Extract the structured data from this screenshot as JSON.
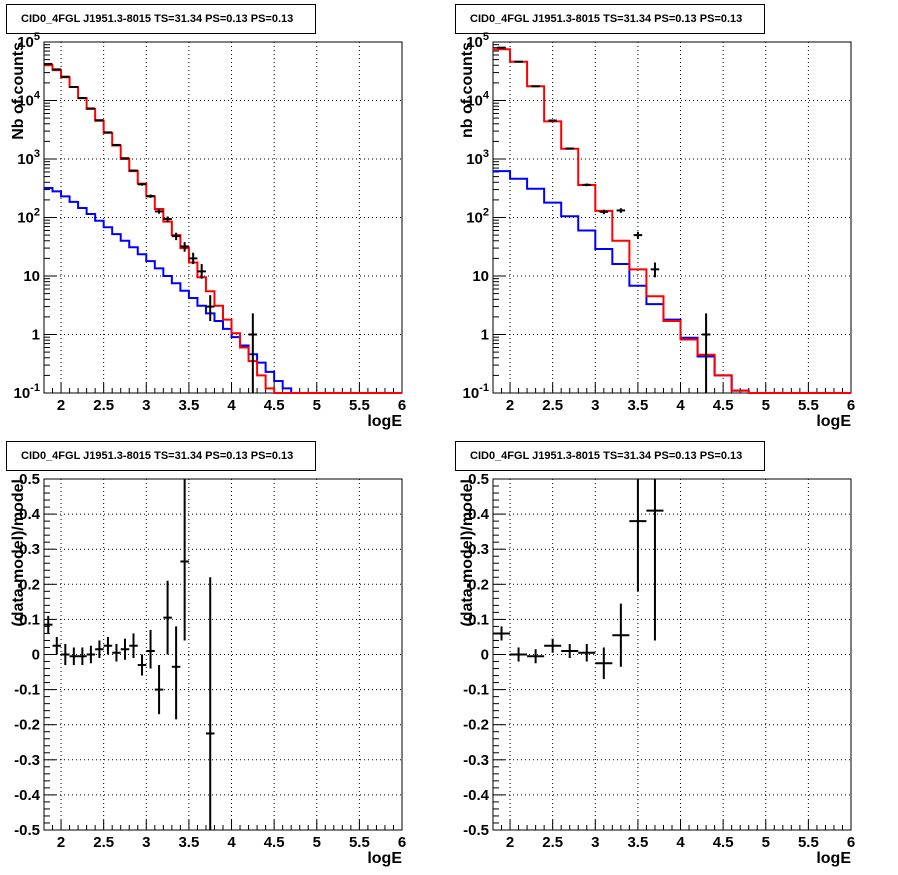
{
  "chart_data": [
    {
      "type": "line",
      "title": "CID0_4FGL J1951.3-8015 TS=31.34 PS=0.13 PS=0.13",
      "xlabel": "logE",
      "ylabel": "Nb of counts",
      "xlim": [
        1.8,
        6
      ],
      "ylim": [
        0.1,
        100000
      ],
      "yscale": "log",
      "grid": true,
      "xticks": [
        "2",
        "2.5",
        "3",
        "3.5",
        "4",
        "4.5",
        "5",
        "5.5",
        "6"
      ],
      "yticks": [
        "10^-1",
        "1",
        "10",
        "10^2",
        "10^3",
        "10^4",
        "10^5"
      ],
      "bin_edges": [
        1.8,
        1.9,
        2.0,
        2.1,
        2.2,
        2.3,
        2.4,
        2.5,
        2.6,
        2.7,
        2.8,
        2.9,
        3.0,
        3.1,
        3.2,
        3.3,
        3.4,
        3.5,
        3.6,
        3.7,
        3.8,
        3.9,
        4.0,
        4.1,
        4.2,
        4.3,
        4.4,
        4.5,
        4.6,
        4.7,
        4.8,
        4.9,
        5.0,
        5.1,
        5.2,
        5.3,
        5.4,
        5.5,
        5.6,
        5.7,
        5.8,
        5.9,
        6.0
      ],
      "series": [
        {
          "color": "#ff0000",
          "style": "step",
          "values": [
            40000,
            33000,
            25000,
            17000,
            11000,
            7200,
            4500,
            2800,
            1700,
            1000,
            620,
            380,
            230,
            140,
            85,
            50,
            30,
            17,
            9.5,
            5.5,
            3.1,
            1.8,
            1.05,
            0.6,
            0.35,
            0.2,
            0.12,
            0.1,
            0.1,
            0.1,
            0.1,
            0.1,
            0.1,
            0.1,
            0.1,
            0.1,
            0.1,
            0.1,
            0.1,
            0.1,
            0.1,
            0.1
          ]
        },
        {
          "color": "#0000ff",
          "style": "step",
          "values": [
            320,
            280,
            230,
            185,
            145,
            115,
            88,
            68,
            52,
            40,
            31,
            23.5,
            18,
            13.5,
            10,
            7.5,
            5.6,
            4.2,
            3.1,
            2.3,
            1.7,
            1.25,
            0.9,
            0.65,
            0.46,
            0.33,
            0.23,
            0.16,
            0.12,
            0.1,
            0.1,
            0.1,
            0.1,
            0.1,
            0.1,
            0.1,
            0.1,
            0.1,
            0.1,
            0.1,
            0.1,
            0.1
          ]
        }
      ],
      "points": [
        {
          "x": 1.85,
          "y": 42000,
          "ylo": 41800,
          "yhi": 42200
        },
        {
          "x": 1.95,
          "y": 34000,
          "ylo": 33800,
          "yhi": 34200
        },
        {
          "x": 2.05,
          "y": 25500,
          "ylo": 25300,
          "yhi": 25700
        },
        {
          "x": 2.15,
          "y": 17000,
          "ylo": 16850,
          "yhi": 17150
        },
        {
          "x": 2.25,
          "y": 11000,
          "ylo": 10880,
          "yhi": 11120
        },
        {
          "x": 2.35,
          "y": 7300,
          "ylo": 7200,
          "yhi": 7400
        },
        {
          "x": 2.45,
          "y": 4600,
          "ylo": 4530,
          "yhi": 4670
        },
        {
          "x": 2.55,
          "y": 2850,
          "ylo": 2790,
          "yhi": 2910
        },
        {
          "x": 2.65,
          "y": 1740,
          "ylo": 1700,
          "yhi": 1780
        },
        {
          "x": 2.75,
          "y": 1030,
          "ylo": 1000,
          "yhi": 1060
        },
        {
          "x": 2.85,
          "y": 635,
          "ylo": 610,
          "yhi": 660
        },
        {
          "x": 2.95,
          "y": 370,
          "ylo": 350,
          "yhi": 390
        },
        {
          "x": 3.05,
          "y": 232,
          "ylo": 217,
          "yhi": 247
        },
        {
          "x": 3.15,
          "y": 127,
          "ylo": 116,
          "yhi": 138
        },
        {
          "x": 3.25,
          "y": 94,
          "ylo": 84,
          "yhi": 104
        },
        {
          "x": 3.35,
          "y": 48,
          "ylo": 41,
          "yhi": 55
        },
        {
          "x": 3.45,
          "y": 32,
          "ylo": 26,
          "yhi": 38
        },
        {
          "x": 3.55,
          "y": 20,
          "ylo": 16,
          "yhi": 25
        },
        {
          "x": 3.65,
          "y": 12,
          "ylo": 9,
          "yhi": 16
        },
        {
          "x": 3.75,
          "y": 3,
          "ylo": 1.7,
          "yhi": 4.7
        },
        {
          "x": 4.25,
          "y": 1,
          "ylo": 0.1,
          "yhi": 2.3
        }
      ]
    },
    {
      "type": "line",
      "title": "CID0_4FGL J1951.3-8015 TS=31.34 PS=0.13 PS=0.13",
      "xlabel": "logE",
      "ylabel": "nb of counts",
      "xlim": [
        1.8,
        6
      ],
      "ylim": [
        0.1,
        100000
      ],
      "yscale": "log",
      "grid": true,
      "xticks": [
        "2",
        "2.5",
        "3",
        "3.5",
        "4",
        "4.5",
        "5",
        "5.5",
        "6"
      ],
      "yticks": [
        "10^-1",
        "1",
        "10",
        "10^2",
        "10^3",
        "10^4",
        "10^5"
      ],
      "bin_edges": [
        1.8,
        2.0,
        2.2,
        2.4,
        2.6,
        2.8,
        3.0,
        3.2,
        3.4,
        3.6,
        3.8,
        4.0,
        4.2,
        4.4,
        4.6,
        4.8,
        5.0,
        5.2,
        5.4,
        5.6,
        5.8,
        6.0
      ],
      "series": [
        {
          "color": "#ff0000",
          "style": "step",
          "values": [
            75000,
            46000,
            17500,
            4400,
            1500,
            360,
            130,
            40,
            13,
            4.5,
            1.7,
            0.82,
            0.45,
            0.2,
            0.11,
            0.1,
            0.1,
            0.1,
            0.1,
            0.1,
            0.1
          ]
        },
        {
          "color": "#0000ff",
          "style": "step",
          "values": [
            620,
            460,
            310,
            180,
            105,
            60,
            29,
            16,
            6.8,
            3.3,
            1.8,
            0.88,
            0.42,
            0.2,
            0.11,
            0.1,
            0.1,
            0.1,
            0.1,
            0.1,
            0.1
          ]
        }
      ],
      "points": [
        {
          "x": 1.9,
          "y": 80000,
          "ylo": 79700,
          "yhi": 80300
        },
        {
          "x": 2.1,
          "y": 46000,
          "ylo": 45800,
          "yhi": 46200
        },
        {
          "x": 2.3,
          "y": 17500,
          "ylo": 17350,
          "yhi": 17650
        },
        {
          "x": 2.5,
          "y": 4550,
          "ylo": 4480,
          "yhi": 4620
        },
        {
          "x": 2.7,
          "y": 1510,
          "ylo": 1470,
          "yhi": 1550
        },
        {
          "x": 2.9,
          "y": 362,
          "ylo": 343,
          "yhi": 381
        },
        {
          "x": 3.1,
          "y": 125,
          "ylo": 114,
          "yhi": 136
        },
        {
          "x": 3.3,
          "y": 132,
          "ylo": 120,
          "yhi": 144
        },
        {
          "x": 3.5,
          "y": 50,
          "ylo": 43,
          "yhi": 57
        },
        {
          "x": 3.7,
          "y": 13,
          "ylo": 9.5,
          "yhi": 17
        },
        {
          "x": 4.3,
          "y": 1,
          "ylo": 0.1,
          "yhi": 2.3
        }
      ]
    },
    {
      "type": "scatter",
      "title": "CID0_4FGL J1951.3-8015 TS=31.34 PS=0.13 PS=0.13",
      "xlabel": "logE",
      "ylabel": "(data-model)/model",
      "xlim": [
        1.8,
        6
      ],
      "ylim": [
        -0.5,
        0.5
      ],
      "grid": true,
      "xticks": [
        "2",
        "2.5",
        "3",
        "3.5",
        "4",
        "4.5",
        "5",
        "5.5",
        "6"
      ],
      "yticks": [
        "-0.5",
        "-0.4",
        "-0.3",
        "-0.2",
        "-0.1",
        "0",
        "0.1",
        "0.2",
        "0.3",
        "0.4",
        "0.5"
      ],
      "xerr": 0.05,
      "points": [
        {
          "x": 1.85,
          "y": 0.085,
          "ylo": 0.06,
          "yhi": 0.11
        },
        {
          "x": 1.95,
          "y": 0.025,
          "ylo": 0.0,
          "yhi": 0.05
        },
        {
          "x": 2.05,
          "y": 0.0,
          "ylo": -0.03,
          "yhi": 0.03
        },
        {
          "x": 2.15,
          "y": -0.005,
          "ylo": -0.03,
          "yhi": 0.02
        },
        {
          "x": 2.25,
          "y": -0.005,
          "ylo": -0.03,
          "yhi": 0.02
        },
        {
          "x": 2.35,
          "y": 0.0,
          "ylo": -0.025,
          "yhi": 0.025
        },
        {
          "x": 2.45,
          "y": 0.015,
          "ylo": -0.01,
          "yhi": 0.04
        },
        {
          "x": 2.55,
          "y": 0.025,
          "ylo": 0.0,
          "yhi": 0.05
        },
        {
          "x": 2.65,
          "y": 0.005,
          "ylo": -0.02,
          "yhi": 0.03
        },
        {
          "x": 2.75,
          "y": 0.015,
          "ylo": -0.015,
          "yhi": 0.045
        },
        {
          "x": 2.85,
          "y": 0.025,
          "ylo": -0.01,
          "yhi": 0.06
        },
        {
          "x": 2.95,
          "y": -0.03,
          "ylo": -0.06,
          "yhi": 0.0
        },
        {
          "x": 3.05,
          "y": 0.01,
          "ylo": -0.04,
          "yhi": 0.07
        },
        {
          "x": 3.15,
          "y": -0.1,
          "ylo": -0.17,
          "yhi": -0.03
        },
        {
          "x": 3.25,
          "y": 0.105,
          "ylo": 0.0,
          "yhi": 0.21
        },
        {
          "x": 3.35,
          "y": -0.035,
          "ylo": -0.185,
          "yhi": 0.08
        },
        {
          "x": 3.45,
          "y": 0.265,
          "ylo": 0.04,
          "yhi": 0.5
        },
        {
          "x": 3.75,
          "y": -0.225,
          "ylo": -0.5,
          "yhi": 0.22
        }
      ]
    },
    {
      "type": "scatter",
      "title": "CID0_4FGL J1951.3-8015 TS=31.34 PS=0.13 PS=0.13",
      "xlabel": "logE",
      "ylabel": "(data-model)/model",
      "xlim": [
        1.8,
        6
      ],
      "ylim": [
        -0.5,
        0.5
      ],
      "grid": true,
      "xticks": [
        "2",
        "2.5",
        "3",
        "3.5",
        "4",
        "4.5",
        "5",
        "5.5",
        "6"
      ],
      "yticks": [
        "-0.5",
        "-0.4",
        "-0.3",
        "-0.2",
        "-0.1",
        "0",
        "0.1",
        "0.2",
        "0.3",
        "0.4",
        "0.5"
      ],
      "xerr": 0.1,
      "points": [
        {
          "x": 1.9,
          "y": 0.06,
          "ylo": 0.04,
          "yhi": 0.08
        },
        {
          "x": 2.1,
          "y": 0.0,
          "ylo": -0.02,
          "yhi": 0.02
        },
        {
          "x": 2.3,
          "y": -0.005,
          "ylo": -0.025,
          "yhi": 0.015
        },
        {
          "x": 2.5,
          "y": 0.025,
          "ylo": 0.005,
          "yhi": 0.045
        },
        {
          "x": 2.7,
          "y": 0.01,
          "ylo": -0.01,
          "yhi": 0.03
        },
        {
          "x": 2.9,
          "y": 0.005,
          "ylo": -0.02,
          "yhi": 0.03
        },
        {
          "x": 3.1,
          "y": -0.025,
          "ylo": -0.07,
          "yhi": 0.02
        },
        {
          "x": 3.3,
          "y": 0.055,
          "ylo": -0.035,
          "yhi": 0.145
        },
        {
          "x": 3.5,
          "y": 0.38,
          "ylo": 0.18,
          "yhi": 0.5
        },
        {
          "x": 3.7,
          "y": 0.41,
          "ylo": 0.04,
          "yhi": 0.5
        }
      ]
    }
  ]
}
